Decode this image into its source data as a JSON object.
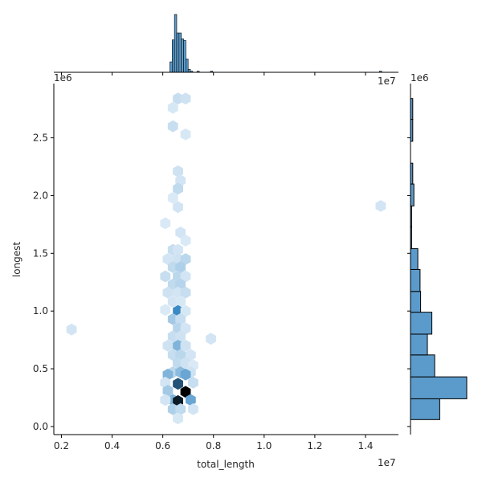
{
  "chart_data": {
    "type": "hexbin",
    "xlabel": "total_length",
    "ylabel": "longest",
    "x_offset_label": "1e7",
    "y_offset_label": "1e6",
    "xlim": [
      0.17,
      1.53
    ],
    "ylim": [
      -0.07,
      2.97
    ],
    "x_ticks": [
      0.2,
      0.4,
      0.6,
      0.8,
      1.0,
      1.2,
      1.4
    ],
    "x_tick_labels": [
      "0.2",
      "0.4",
      "0.6",
      "0.8",
      "1.0",
      "1.2",
      "1.4"
    ],
    "y_ticks": [
      0.0,
      0.5,
      1.0,
      1.5,
      2.0,
      2.5
    ],
    "y_tick_labels": [
      "0.0",
      "0.5",
      "1.0",
      "1.5",
      "2.0",
      "2.5"
    ],
    "hexbins": [
      {
        "x": 0.66,
        "y": 2.84,
        "v": 0.15
      },
      {
        "x": 0.69,
        "y": 2.84,
        "v": 0.12
      },
      {
        "x": 0.64,
        "y": 2.76,
        "v": 0.08
      },
      {
        "x": 0.64,
        "y": 2.6,
        "v": 0.15
      },
      {
        "x": 0.69,
        "y": 2.53,
        "v": 0.08
      },
      {
        "x": 0.66,
        "y": 2.21,
        "v": 0.12
      },
      {
        "x": 0.67,
        "y": 2.13,
        "v": 0.1
      },
      {
        "x": 0.66,
        "y": 2.06,
        "v": 0.18
      },
      {
        "x": 0.64,
        "y": 1.98,
        "v": 0.07
      },
      {
        "x": 0.66,
        "y": 1.9,
        "v": 0.1
      },
      {
        "x": 0.61,
        "y": 1.76,
        "v": 0.07
      },
      {
        "x": 0.67,
        "y": 1.68,
        "v": 0.1
      },
      {
        "x": 0.69,
        "y": 1.61,
        "v": 0.07
      },
      {
        "x": 0.64,
        "y": 1.53,
        "v": 0.15
      },
      {
        "x": 0.66,
        "y": 1.53,
        "v": 0.1
      },
      {
        "x": 0.62,
        "y": 1.45,
        "v": 0.1
      },
      {
        "x": 0.66,
        "y": 1.45,
        "v": 0.12
      },
      {
        "x": 0.69,
        "y": 1.45,
        "v": 0.2
      },
      {
        "x": 0.64,
        "y": 1.38,
        "v": 0.18
      },
      {
        "x": 0.67,
        "y": 1.38,
        "v": 0.25
      },
      {
        "x": 0.61,
        "y": 1.3,
        "v": 0.15
      },
      {
        "x": 0.66,
        "y": 1.3,
        "v": 0.2
      },
      {
        "x": 0.69,
        "y": 1.3,
        "v": 0.1
      },
      {
        "x": 0.64,
        "y": 1.23,
        "v": 0.18
      },
      {
        "x": 0.67,
        "y": 1.23,
        "v": 0.22
      },
      {
        "x": 0.62,
        "y": 1.16,
        "v": 0.12
      },
      {
        "x": 0.66,
        "y": 1.16,
        "v": 0.1
      },
      {
        "x": 0.69,
        "y": 1.16,
        "v": 0.15
      },
      {
        "x": 0.64,
        "y": 1.08,
        "v": 0.1
      },
      {
        "x": 0.67,
        "y": 1.08,
        "v": 0.08
      },
      {
        "x": 0.61,
        "y": 1.01,
        "v": 0.07
      },
      {
        "x": 0.66,
        "y": 1.0,
        "v": 0.75
      },
      {
        "x": 0.69,
        "y": 1.0,
        "v": 0.08
      },
      {
        "x": 0.64,
        "y": 0.93,
        "v": 0.3
      },
      {
        "x": 0.67,
        "y": 0.93,
        "v": 0.15
      },
      {
        "x": 0.66,
        "y": 0.85,
        "v": 0.22
      },
      {
        "x": 0.69,
        "y": 0.85,
        "v": 0.1
      },
      {
        "x": 0.64,
        "y": 0.78,
        "v": 0.15
      },
      {
        "x": 0.67,
        "y": 0.78,
        "v": 0.12
      },
      {
        "x": 0.79,
        "y": 0.76,
        "v": 0.1
      },
      {
        "x": 0.62,
        "y": 0.7,
        "v": 0.12
      },
      {
        "x": 0.66,
        "y": 0.7,
        "v": 0.45
      },
      {
        "x": 0.69,
        "y": 0.7,
        "v": 0.12
      },
      {
        "x": 0.64,
        "y": 0.62,
        "v": 0.15
      },
      {
        "x": 0.67,
        "y": 0.62,
        "v": 0.2
      },
      {
        "x": 0.71,
        "y": 0.62,
        "v": 0.1
      },
      {
        "x": 0.66,
        "y": 0.55,
        "v": 0.18
      },
      {
        "x": 0.69,
        "y": 0.55,
        "v": 0.12
      },
      {
        "x": 0.72,
        "y": 0.53,
        "v": 0.07
      },
      {
        "x": 0.64,
        "y": 0.47,
        "v": 0.2
      },
      {
        "x": 0.67,
        "y": 0.47,
        "v": 0.4
      },
      {
        "x": 0.71,
        "y": 0.47,
        "v": 0.12
      },
      {
        "x": 0.62,
        "y": 0.45,
        "v": 0.45
      },
      {
        "x": 0.69,
        "y": 0.45,
        "v": 0.55
      },
      {
        "x": 0.61,
        "y": 0.38,
        "v": 0.1
      },
      {
        "x": 0.66,
        "y": 0.37,
        "v": 0.85
      },
      {
        "x": 0.72,
        "y": 0.38,
        "v": 0.15
      },
      {
        "x": 0.62,
        "y": 0.31,
        "v": 0.3
      },
      {
        "x": 0.69,
        "y": 0.3,
        "v": 1.0
      },
      {
        "x": 0.64,
        "y": 0.23,
        "v": 0.45
      },
      {
        "x": 0.66,
        "y": 0.22,
        "v": 0.95
      },
      {
        "x": 0.71,
        "y": 0.23,
        "v": 0.55
      },
      {
        "x": 0.61,
        "y": 0.23,
        "v": 0.1
      },
      {
        "x": 0.64,
        "y": 0.15,
        "v": 0.25
      },
      {
        "x": 0.67,
        "y": 0.15,
        "v": 0.18
      },
      {
        "x": 0.72,
        "y": 0.15,
        "v": 0.1
      },
      {
        "x": 0.66,
        "y": 0.07,
        "v": 0.08
      },
      {
        "x": 0.24,
        "y": 0.84,
        "v": 0.1
      },
      {
        "x": 1.46,
        "y": 1.91,
        "v": 0.1
      }
    ],
    "top_histogram": {
      "bins": [
        {
          "x0": 0.628,
          "x1": 0.637,
          "h": 0.18
        },
        {
          "x0": 0.637,
          "x1": 0.646,
          "h": 0.56
        },
        {
          "x0": 0.646,
          "x1": 0.655,
          "h": 1.0
        },
        {
          "x0": 0.655,
          "x1": 0.664,
          "h": 0.68
        },
        {
          "x0": 0.664,
          "x1": 0.673,
          "h": 0.68
        },
        {
          "x0": 0.673,
          "x1": 0.682,
          "h": 0.58
        },
        {
          "x0": 0.682,
          "x1": 0.691,
          "h": 0.55
        },
        {
          "x0": 0.691,
          "x1": 0.7,
          "h": 0.23
        },
        {
          "x0": 0.7,
          "x1": 0.709,
          "h": 0.05
        },
        {
          "x0": 0.709,
          "x1": 0.718,
          "h": 0.02
        },
        {
          "x0": 0.735,
          "x1": 0.744,
          "h": 0.02
        },
        {
          "x0": 0.788,
          "x1": 0.797,
          "h": 0.02
        },
        {
          "x0": 1.455,
          "x1": 1.464,
          "h": 0.02
        }
      ]
    },
    "right_histogram": {
      "bins": [
        {
          "y0": 0.06,
          "y1": 0.24,
          "w": 0.52
        },
        {
          "y0": 0.24,
          "y1": 0.43,
          "w": 1.0
        },
        {
          "y0": 0.43,
          "y1": 0.62,
          "w": 0.43
        },
        {
          "y0": 0.62,
          "y1": 0.8,
          "w": 0.3
        },
        {
          "y0": 0.8,
          "y1": 0.99,
          "w": 0.38
        },
        {
          "y0": 0.99,
          "y1": 1.17,
          "w": 0.18
        },
        {
          "y0": 1.17,
          "y1": 1.36,
          "w": 0.17
        },
        {
          "y0": 1.36,
          "y1": 1.54,
          "w": 0.13
        },
        {
          "y0": 1.54,
          "y1": 1.73,
          "w": 0.02
        },
        {
          "y0": 1.73,
          "y1": 1.91,
          "w": 0.02
        },
        {
          "y0": 1.91,
          "y1": 2.1,
          "w": 0.06
        },
        {
          "y0": 2.1,
          "y1": 2.28,
          "w": 0.04
        },
        {
          "y0": 2.47,
          "y1": 2.66,
          "w": 0.04
        },
        {
          "y0": 2.66,
          "y1": 2.84,
          "w": 0.04
        }
      ]
    },
    "colors": {
      "hex_light": "#eaf3fb",
      "hex_mid": "#3a8ac4",
      "hex_dark": "#000000",
      "hist_fill": "#5b9bcb",
      "hist_edge": "#000000",
      "axis": "#000000"
    }
  }
}
